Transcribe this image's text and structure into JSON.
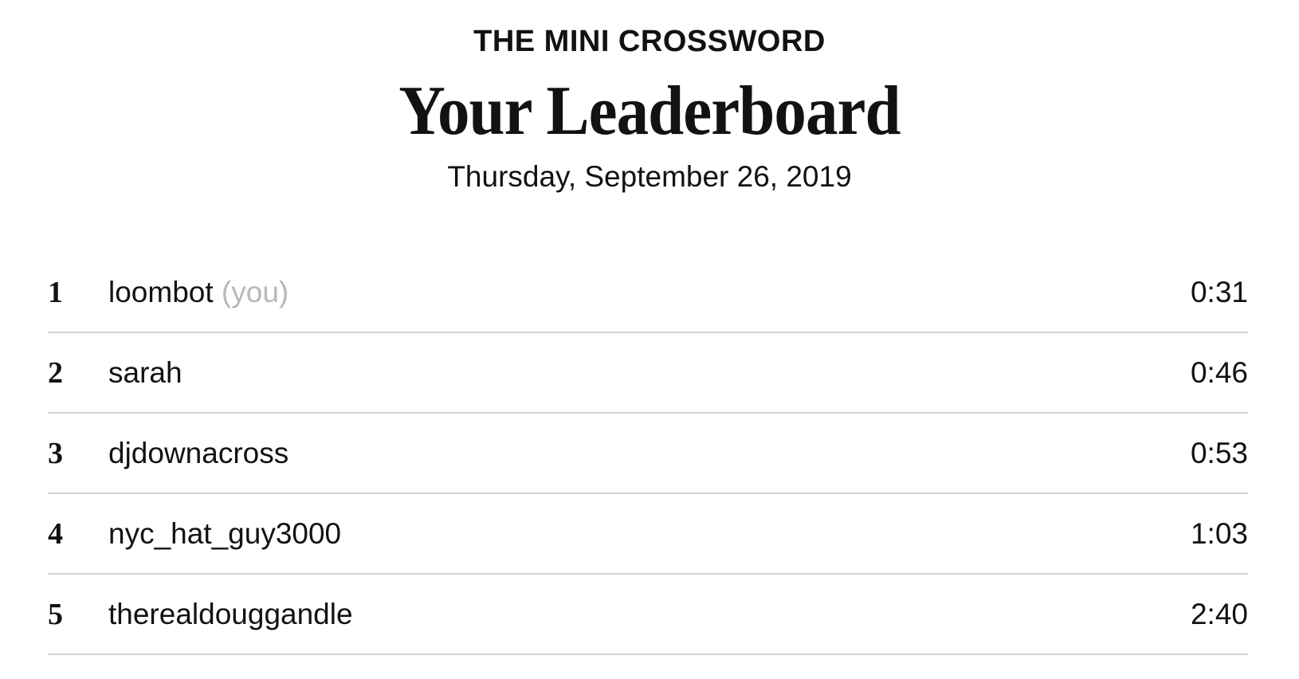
{
  "header": {
    "kicker": "THE MINI CROSSWORD",
    "title": "Your Leaderboard",
    "date": "Thursday, September 26, 2019"
  },
  "leaderboard": [
    {
      "rank": "1",
      "name": "loombot",
      "you_tag": "(you)",
      "time": "0:31"
    },
    {
      "rank": "2",
      "name": "sarah",
      "time": "0:46"
    },
    {
      "rank": "3",
      "name": "djdownacross",
      "time": "0:53"
    },
    {
      "rank": "4",
      "name": "nyc_hat_guy3000",
      "time": "1:03"
    },
    {
      "rank": "5",
      "name": "therealdouggandle",
      "time": "2:40"
    }
  ]
}
